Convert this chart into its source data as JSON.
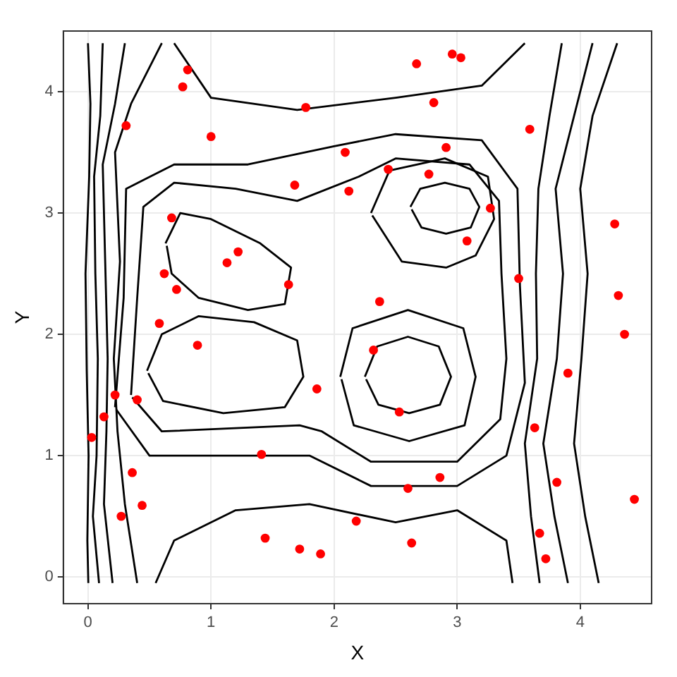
{
  "chart_data": {
    "type": "scatter",
    "xlabel": "X",
    "ylabel": "Y",
    "xlim": [
      -0.2,
      4.58
    ],
    "ylim": [
      -0.22,
      4.5
    ],
    "xticks": [
      0,
      1,
      2,
      3,
      4
    ],
    "yticks": [
      0,
      1,
      2,
      3,
      4
    ],
    "grid": true,
    "legend": false,
    "marker": "circle",
    "series": [
      {
        "color": "#ff0000",
        "x": [
          0.03,
          0.13,
          0.22,
          0.4,
          0.36,
          0.27,
          0.44,
          0.31,
          0.77,
          0.81,
          1.0,
          0.68,
          0.62,
          0.72,
          0.58,
          0.89,
          1.13,
          1.22,
          1.63,
          1.68,
          1.77,
          2.09,
          2.12,
          2.44,
          2.77,
          2.67,
          2.81,
          2.96,
          3.03,
          2.91,
          3.27,
          3.08,
          3.59,
          3.5,
          4.28,
          4.31,
          4.36,
          3.9,
          2.37,
          2.32,
          1.86,
          2.53,
          1.41,
          2.6,
          2.86,
          3.63,
          3.81,
          2.18,
          1.44,
          1.72,
          1.89,
          2.63,
          3.67,
          3.72,
          4.44
        ],
        "values": [
          1.15,
          1.32,
          1.5,
          1.46,
          0.86,
          0.5,
          0.59,
          3.72,
          4.04,
          4.18,
          3.63,
          2.96,
          2.5,
          2.37,
          2.09,
          1.91,
          2.59,
          2.68,
          2.41,
          3.23,
          3.87,
          3.5,
          3.18,
          3.36,
          3.32,
          4.23,
          3.91,
          4.31,
          4.28,
          3.54,
          3.04,
          2.77,
          3.69,
          2.46,
          2.91,
          2.32,
          2.0,
          1.68,
          2.27,
          1.87,
          1.55,
          1.36,
          1.01,
          0.73,
          0.82,
          1.23,
          0.78,
          0.46,
          0.32,
          0.23,
          0.19,
          0.28,
          0.36,
          0.15,
          0.64
        ]
      },
      {
        "type": "line",
        "color": "#000000",
        "marker": "none",
        "x": [
          2.62,
          2.7,
          2.9,
          3.1,
          3.18,
          3.11,
          2.91,
          2.71,
          2.63
        ],
        "values": [
          3.05,
          3.2,
          3.25,
          3.2,
          3.05,
          2.88,
          2.83,
          2.88,
          3.03
        ]
      },
      {
        "type": "line",
        "color": "#000000",
        "marker": "none",
        "x": [
          2.25,
          2.35,
          2.6,
          2.85,
          2.95,
          2.86,
          2.61,
          2.36,
          2.26
        ],
        "values": [
          1.65,
          1.9,
          1.98,
          1.9,
          1.65,
          1.42,
          1.35,
          1.42,
          1.63
        ]
      },
      {
        "type": "line",
        "color": "#000000",
        "marker": "none",
        "x": [
          2.05,
          2.15,
          2.6,
          3.05,
          3.15,
          3.06,
          2.61,
          2.16,
          2.06
        ],
        "values": [
          1.65,
          2.05,
          2.2,
          2.05,
          1.65,
          1.25,
          1.12,
          1.25,
          1.63
        ]
      },
      {
        "type": "line",
        "color": "#000000",
        "marker": "none",
        "x": [
          0.63,
          0.75,
          1.0,
          1.4,
          1.65,
          1.6,
          1.3,
          0.9,
          0.68,
          0.64
        ],
        "values": [
          2.75,
          3.0,
          2.95,
          2.75,
          2.55,
          2.25,
          2.2,
          2.3,
          2.5,
          2.73
        ]
      },
      {
        "type": "line",
        "color": "#000000",
        "marker": "none",
        "x": [
          0.48,
          0.6,
          0.9,
          1.35,
          1.7,
          1.75,
          1.6,
          1.1,
          0.61,
          0.49
        ],
        "values": [
          1.7,
          2.0,
          2.15,
          2.1,
          1.95,
          1.65,
          1.4,
          1.35,
          1.45,
          1.68
        ]
      },
      {
        "type": "line",
        "color": "#000000",
        "marker": "none",
        "x": [
          2.3,
          2.45,
          2.9,
          3.25,
          3.3,
          3.15,
          2.91,
          2.55,
          2.31
        ],
        "values": [
          3.0,
          3.35,
          3.45,
          3.3,
          2.95,
          2.65,
          2.55,
          2.6,
          2.98
        ]
      },
      {
        "type": "line",
        "color": "#000000",
        "marker": "none",
        "x": [
          0.35,
          0.4,
          0.45,
          0.7,
          1.2,
          1.7,
          2.2,
          2.5,
          3.1,
          3.34,
          3.36,
          3.4,
          3.35,
          3.0,
          2.3,
          1.9,
          1.72,
          0.6,
          0.36
        ],
        "values": [
          1.5,
          2.3,
          3.05,
          3.25,
          3.2,
          3.1,
          3.3,
          3.45,
          3.4,
          3.1,
          2.5,
          1.8,
          1.3,
          0.95,
          0.95,
          1.2,
          1.25,
          1.2,
          1.48
        ]
      },
      {
        "type": "line",
        "color": "#000000",
        "marker": "none",
        "x": [
          0.22,
          0.29,
          0.31,
          0.7,
          1.3,
          2.0,
          2.5,
          3.2,
          3.49,
          3.51,
          3.55,
          3.4,
          3.0,
          2.3,
          1.8,
          1.2,
          0.5,
          0.23
        ],
        "values": [
          1.4,
          2.3,
          3.2,
          3.4,
          3.4,
          3.55,
          3.65,
          3.6,
          3.2,
          2.4,
          1.6,
          1.0,
          0.75,
          0.75,
          1.0,
          1.0,
          1.0,
          1.38
        ]
      },
      {
        "type": "line",
        "color": "#000000",
        "marker": "none",
        "x": [
          0.0,
          0.02,
          0.01,
          -0.02,
          -0.01,
          0.005,
          -0.005,
          0.003
        ],
        "values": [
          4.4,
          3.9,
          3.3,
          2.5,
          1.7,
          1.0,
          0.3,
          -0.05
        ]
      },
      {
        "type": "line",
        "color": "#000000",
        "marker": "none",
        "x": [
          0.12,
          0.1,
          0.05,
          0.06,
          0.08,
          0.07,
          0.04,
          0.09
        ],
        "values": [
          4.4,
          3.8,
          3.3,
          2.5,
          1.8,
          1.0,
          0.5,
          -0.05
        ]
      },
      {
        "type": "line",
        "color": "#000000",
        "marker": "none",
        "x": [
          0.3,
          0.22,
          0.12,
          0.14,
          0.16,
          0.15,
          0.13,
          0.2
        ],
        "values": [
          4.4,
          3.9,
          3.4,
          2.6,
          1.8,
          1.2,
          0.6,
          -0.05
        ]
      },
      {
        "type": "line",
        "color": "#000000",
        "marker": "none",
        "x": [
          0.6,
          0.35,
          0.22,
          0.26,
          0.21,
          0.24,
          0.3,
          0.4
        ],
        "values": [
          4.4,
          3.9,
          3.5,
          2.6,
          1.8,
          1.2,
          0.6,
          -0.05
        ]
      },
      {
        "type": "line",
        "color": "#000000",
        "marker": "none",
        "x": [
          0.7,
          1.0,
          1.7,
          2.5,
          3.2,
          3.55
        ],
        "values": [
          4.4,
          3.95,
          3.85,
          3.95,
          4.05,
          4.4
        ]
      },
      {
        "type": "line",
        "color": "#000000",
        "marker": "none",
        "x": [
          0.55,
          0.7,
          1.2,
          1.8,
          2.5,
          3.0,
          3.4,
          3.45
        ],
        "values": [
          -0.05,
          0.3,
          0.55,
          0.6,
          0.45,
          0.55,
          0.3,
          -0.05
        ]
      },
      {
        "type": "line",
        "color": "#000000",
        "marker": "none",
        "x": [
          3.85,
          3.75,
          3.66,
          3.64,
          3.65,
          3.55,
          3.6,
          3.67
        ],
        "values": [
          4.4,
          3.8,
          3.2,
          2.5,
          1.8,
          1.1,
          0.5,
          -0.05
        ]
      },
      {
        "type": "line",
        "color": "#000000",
        "marker": "none",
        "x": [
          4.1,
          3.95,
          3.8,
          3.86,
          3.81,
          3.7,
          3.79,
          3.9
        ],
        "values": [
          4.4,
          3.8,
          3.2,
          2.5,
          1.8,
          1.1,
          0.5,
          -0.05
        ]
      },
      {
        "type": "line",
        "color": "#000000",
        "marker": "none",
        "x": [
          4.3,
          4.1,
          4.0,
          4.06,
          4.01,
          3.95,
          4.04,
          4.15
        ],
        "values": [
          4.4,
          3.8,
          3.2,
          2.5,
          1.8,
          1.1,
          0.5,
          -0.05
        ]
      }
    ]
  }
}
